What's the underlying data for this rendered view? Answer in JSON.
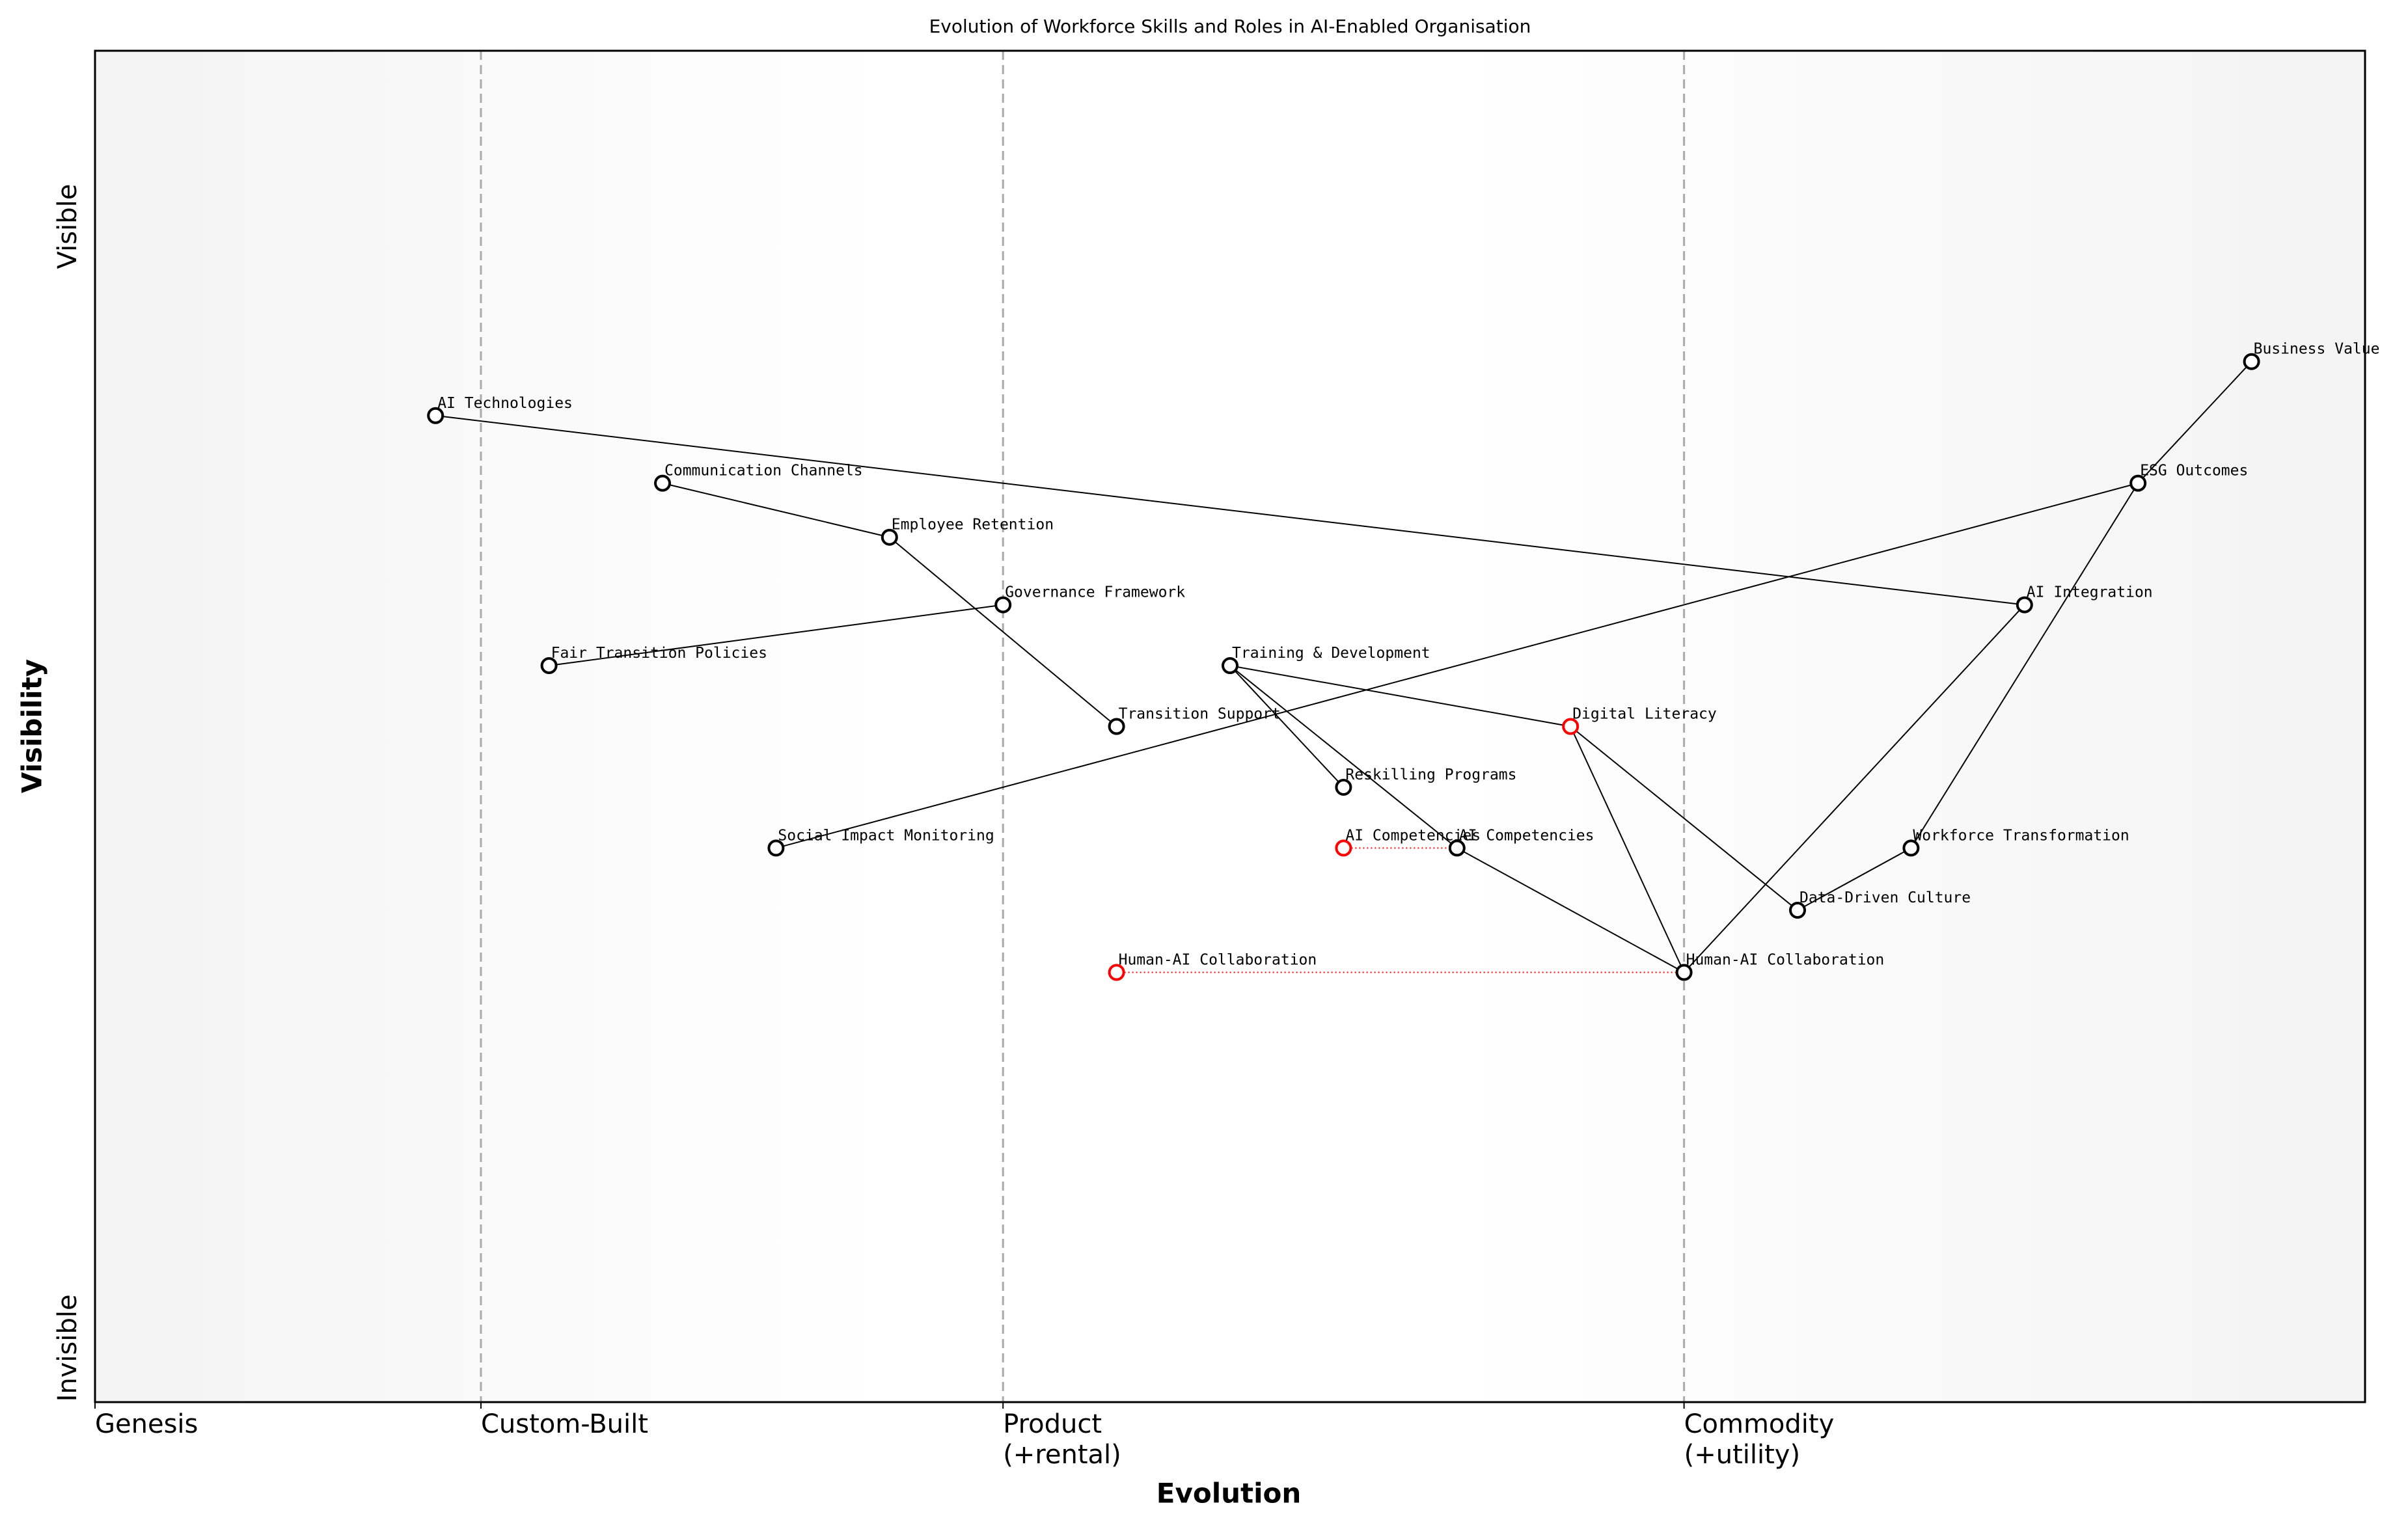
{
  "chart_data": {
    "type": "wardley",
    "title": "Evolution of Workforce Skills and Roles in AI-Enabled Organisation",
    "x_label": "Evolution",
    "y_label": "Visibility",
    "xlim": [
      0,
      1
    ],
    "ylim": [
      0,
      1
    ],
    "xticks": [
      {
        "value": 0,
        "label": "Genesis"
      },
      {
        "value": 0.17,
        "label": "Custom-Built"
      },
      {
        "value": 0.4,
        "label": "Product\n(+rental)"
      },
      {
        "value": 0.7,
        "label": "Commodity\n(+utility)"
      }
    ],
    "yticks": [
      {
        "value": 0.04,
        "label": "Invisible"
      },
      {
        "value": 0.87,
        "label": "Visible"
      }
    ],
    "components": [
      {
        "name": "Business Value",
        "evolution": 0.95,
        "visibility": 0.77,
        "color": "#000000"
      },
      {
        "name": "AI Technologies",
        "evolution": 0.15,
        "visibility": 0.73,
        "color": "#000000"
      },
      {
        "name": "Communication Channels",
        "evolution": 0.25,
        "visibility": 0.68,
        "color": "#000000"
      },
      {
        "name": "ESG Outcomes",
        "evolution": 0.9,
        "visibility": 0.68,
        "color": "#000000"
      },
      {
        "name": "Employee Retention",
        "evolution": 0.35,
        "visibility": 0.64,
        "color": "#000000"
      },
      {
        "name": "Governance Framework",
        "evolution": 0.4,
        "visibility": 0.59,
        "color": "#000000"
      },
      {
        "name": "AI Integration",
        "evolution": 0.85,
        "visibility": 0.59,
        "color": "#000000"
      },
      {
        "name": "Fair Transition Policies",
        "evolution": 0.2,
        "visibility": 0.545,
        "color": "#000000"
      },
      {
        "name": "Training & Development",
        "evolution": 0.5,
        "visibility": 0.545,
        "color": "#000000"
      },
      {
        "name": "Transition Support",
        "evolution": 0.45,
        "visibility": 0.5,
        "color": "#000000"
      },
      {
        "name": "Digital Literacy",
        "evolution": 0.65,
        "visibility": 0.5,
        "color": "#ff0000"
      },
      {
        "name": "Reskilling Programs",
        "evolution": 0.55,
        "visibility": 0.455,
        "color": "#000000"
      },
      {
        "name": "Social Impact Monitoring",
        "evolution": 0.3,
        "visibility": 0.41,
        "color": "#000000"
      },
      {
        "name": "AI Competencies",
        "evolution": 0.6,
        "visibility": 0.41,
        "color": "#000000"
      },
      {
        "name": "Workforce Transformation",
        "evolution": 0.8,
        "visibility": 0.41,
        "color": "#000000"
      },
      {
        "name": "Data-Driven Culture",
        "evolution": 0.75,
        "visibility": 0.364,
        "color": "#000000"
      },
      {
        "name": "Human-AI Collaboration",
        "evolution": 0.7,
        "visibility": 0.318,
        "color": "#000000"
      }
    ],
    "links": [
      [
        "AI Technologies",
        "AI Integration"
      ],
      [
        "Communication Channels",
        "Employee Retention"
      ],
      [
        "Employee Retention",
        "Transition Support"
      ],
      [
        "Fair Transition Policies",
        "Governance Framework"
      ],
      [
        "Social Impact Monitoring",
        "ESG Outcomes"
      ],
      [
        "Training & Development",
        "Digital Literacy"
      ],
      [
        "Training & Development",
        "Reskilling Programs"
      ],
      [
        "Training & Development",
        "AI Competencies"
      ],
      [
        "AI Competencies",
        "Human-AI Collaboration"
      ],
      [
        "Digital Literacy",
        "Human-AI Collaboration"
      ],
      [
        "Digital Literacy",
        "Data-Driven Culture"
      ],
      [
        "Data-Driven Culture",
        "Workforce Transformation"
      ],
      [
        "Workforce Transformation",
        "ESG Outcomes"
      ],
      [
        "Human-AI Collaboration",
        "AI Integration"
      ],
      [
        "Business Value",
        "ESG Outcomes"
      ]
    ],
    "evolve": [
      {
        "name": "AI Competencies",
        "from": 0.55,
        "to": 0.6,
        "visibility": 0.41,
        "color": "#ff0000"
      },
      {
        "name": "Human-AI Collaboration",
        "from": 0.45,
        "to": 0.7,
        "visibility": 0.318,
        "color": "#ff0000"
      }
    ]
  }
}
